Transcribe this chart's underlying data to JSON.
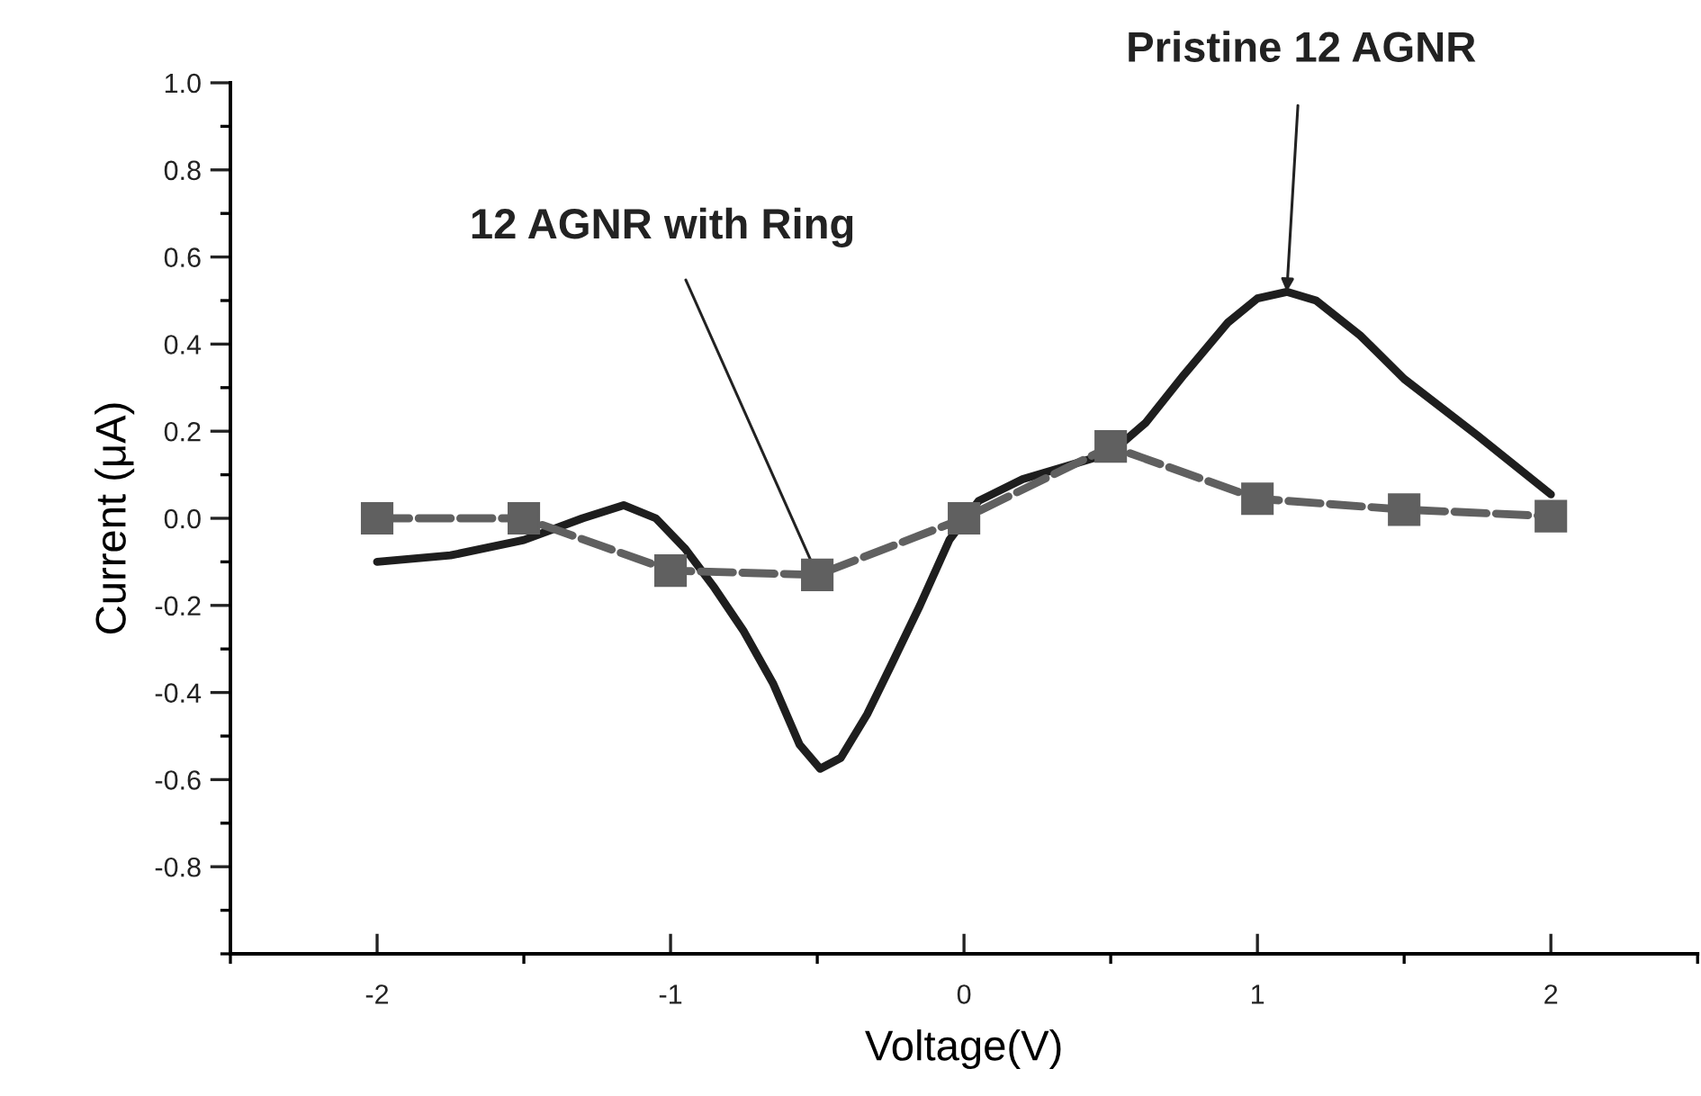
{
  "chart_data": {
    "type": "line",
    "xlabel": "Voltage(V)",
    "ylabel": "Current (μA)",
    "xlim": [
      -2.5,
      2.5
    ],
    "ylim": [
      -1.0,
      1.0
    ],
    "xticks": [
      {
        "value": -2.5,
        "label": null
      },
      -2,
      {
        "value": -1.5,
        "label": null
      },
      -1,
      {
        "value": -0.5,
        "label": null
      },
      0,
      {
        "value": 0.5,
        "label": null
      },
      1,
      {
        "value": 1.5,
        "label": null
      },
      2,
      {
        "value": 2.5,
        "label": null
      }
    ],
    "yticks": [
      {
        "value": -1.0,
        "label": null
      },
      {
        "value": -0.9,
        "label": null
      },
      {
        "value": -0.8,
        "label": "-0.8"
      },
      {
        "value": -0.7,
        "label": null
      },
      {
        "value": -0.6,
        "label": "-0.6"
      },
      {
        "value": -0.5,
        "label": null
      },
      {
        "value": -0.4,
        "label": "-0.4"
      },
      {
        "value": -0.3,
        "label": null
      },
      {
        "value": -0.2,
        "label": "-0.2"
      },
      {
        "value": -0.1,
        "label": null
      },
      {
        "value": 0.0,
        "label": "0.0"
      },
      {
        "value": 0.1,
        "label": null
      },
      {
        "value": 0.2,
        "label": "0.2"
      },
      {
        "value": 0.3,
        "label": null
      },
      {
        "value": 0.4,
        "label": "0.4"
      },
      {
        "value": 0.5,
        "label": null
      },
      {
        "value": 0.6,
        "label": "0.6"
      },
      {
        "value": 0.7,
        "label": null
      },
      {
        "value": 0.8,
        "label": "0.8"
      },
      {
        "value": 0.9,
        "label": null
      },
      {
        "value": 1.0,
        "label": "1.0"
      }
    ],
    "grid": false,
    "legend": false,
    "series": [
      {
        "color": "#1e1e1e",
        "marker": "none",
        "line_style": "solid",
        "x": [
          -2,
          -1.75,
          -1.5,
          -1.3,
          -1.16,
          -1.05,
          -0.95,
          -0.85,
          -0.75,
          -0.65,
          -0.56,
          -0.49,
          -0.42,
          -0.33,
          -0.25,
          -0.15,
          -0.05,
          0.05,
          0.2,
          0.35,
          0.5,
          0.62,
          0.75,
          0.9,
          1.0,
          1.1,
          1.2,
          1.35,
          1.5,
          1.75,
          2
        ],
        "values": [
          -0.1,
          -0.085,
          -0.05,
          0.0,
          0.03,
          0.0,
          -0.07,
          -0.16,
          -0.26,
          -0.38,
          -0.52,
          -0.575,
          -0.55,
          -0.45,
          -0.34,
          -0.2,
          -0.05,
          0.04,
          0.09,
          0.12,
          0.15,
          0.22,
          0.33,
          0.45,
          0.505,
          0.52,
          0.5,
          0.42,
          0.32,
          0.19,
          0.055
        ]
      },
      {
        "color": "#606060",
        "marker": "square",
        "line_style": "dashed",
        "x": [
          -2,
          -1.5,
          -1,
          -0.5,
          0,
          0.5,
          1,
          1.5,
          2
        ],
        "values": [
          0.0,
          0.0,
          -0.12,
          -0.13,
          0.0,
          0.165,
          0.045,
          0.02,
          0.005
        ]
      }
    ],
    "annotations": [
      {
        "text": "Pristine 12 AGNR",
        "x": 1.1,
        "y": 0.52
      },
      {
        "text": "12 AGNR with Ring",
        "x": -0.5,
        "y": -0.13
      }
    ]
  }
}
